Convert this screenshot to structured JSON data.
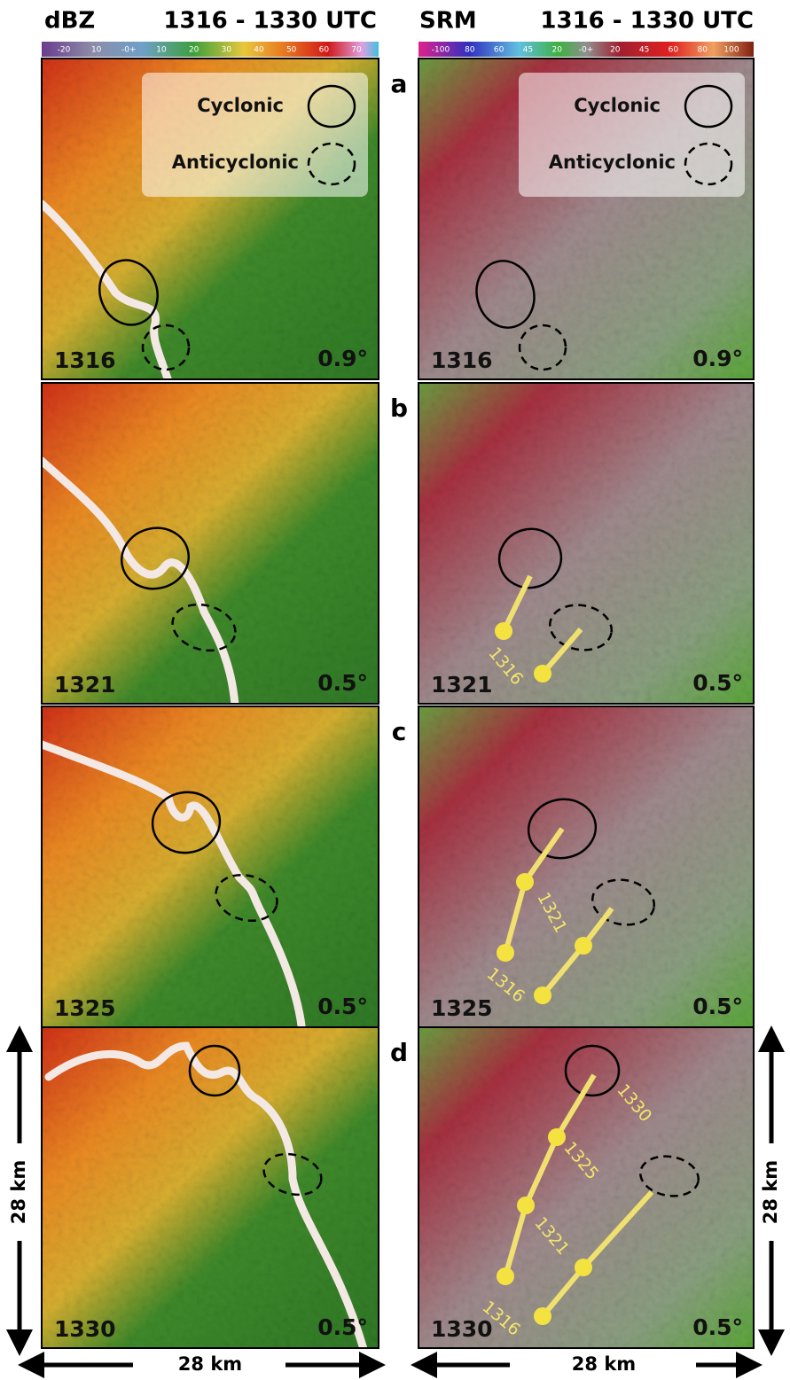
{
  "header": {
    "left": {
      "title": "dBZ",
      "time_range": "1316 - 1330 UTC",
      "colorbar_labels": [
        "-20",
        "10",
        "-0+",
        "10",
        "20",
        "30",
        "40",
        "50",
        "60",
        "70"
      ]
    },
    "right": {
      "title": "SRM",
      "time_range": "1316 - 1330 UTC",
      "colorbar_labels": [
        "-100",
        "80",
        "60",
        "45",
        "20",
        "-0+",
        "20",
        "45",
        "60",
        "80",
        "100"
      ]
    }
  },
  "legend": {
    "cyclonic": "Cyclonic",
    "anticyclonic": "Anticyclonic"
  },
  "panels": [
    {
      "label": "a",
      "time": "1316",
      "left_elevation": "0.9°",
      "right_elevation": "0.9°"
    },
    {
      "label": "b",
      "time": "1321",
      "left_elevation": "0.5°",
      "right_elevation": "0.5°",
      "track_labels": [
        "1316"
      ]
    },
    {
      "label": "c",
      "time": "1325",
      "left_elevation": "0.5°",
      "right_elevation": "0.5°",
      "track_labels": [
        "1321",
        "1316"
      ]
    },
    {
      "label": "d",
      "time": "1330",
      "left_elevation": "0.5°",
      "right_elevation": "0.5°",
      "track_labels": [
        "1330",
        "1325",
        "1321",
        "1316"
      ]
    }
  ],
  "scale": {
    "bottom_left": "28 km",
    "bottom_right": "28 km",
    "left": "28 km",
    "right": "28 km"
  }
}
